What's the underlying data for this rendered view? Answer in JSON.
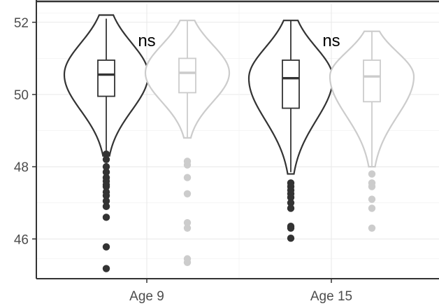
{
  "chart_data": {
    "type": "violin",
    "categories": [
      "Age 9",
      "Age 15"
    ],
    "ylim": [
      44.9,
      52.5
    ],
    "yticks": [
      46,
      48,
      50,
      52
    ],
    "ytick_labels": [
      "46",
      "48",
      "50",
      "52"
    ],
    "grid": true,
    "legend": "none",
    "colors": [
      "#333333",
      "#cccccc"
    ],
    "series": [
      {
        "violins": [
          {
            "category": "Age 9",
            "min": 48.3,
            "max": 52.2,
            "q1": 49.95,
            "median": 50.55,
            "q3": 50.95,
            "whisker_low": 48.45,
            "whisker_high": 52.1,
            "outliers": [
              48.35,
              48.2,
              48.0,
              47.85,
              47.7,
              47.6,
              47.5,
              47.45,
              47.3,
              47.2,
              47.05,
              46.9,
              46.6,
              45.78,
              45.18
            ]
          },
          {
            "category": "Age 15",
            "min": 47.8,
            "max": 52.05,
            "q1": 49.62,
            "median": 50.45,
            "q3": 50.95,
            "whisker_low": 47.85,
            "whisker_high": 52.05,
            "outliers": [
              47.55,
              47.45,
              47.35,
              47.25,
              47.15,
              47.0,
              46.85,
              46.35,
              46.3,
              46.02
            ]
          }
        ]
      },
      {
        "violins": [
          {
            "category": "Age 9",
            "min": 48.8,
            "max": 52.05,
            "q1": 50.05,
            "median": 50.6,
            "q3": 51.0,
            "whisker_low": 48.8,
            "whisker_high": 52.05,
            "outliers": [
              48.15,
              48.05,
              47.7,
              47.25,
              46.45,
              46.3,
              45.45,
              45.35
            ]
          },
          {
            "category": "Age 15",
            "min": 48.0,
            "max": 51.75,
            "q1": 49.8,
            "median": 50.5,
            "q3": 50.95,
            "whisker_low": 48.0,
            "whisker_high": 51.75,
            "outliers": [
              47.8,
              47.55,
              47.45,
              47.1,
              46.85,
              46.3
            ]
          }
        ]
      }
    ],
    "annotations": [
      "ns",
      "ns"
    ]
  }
}
